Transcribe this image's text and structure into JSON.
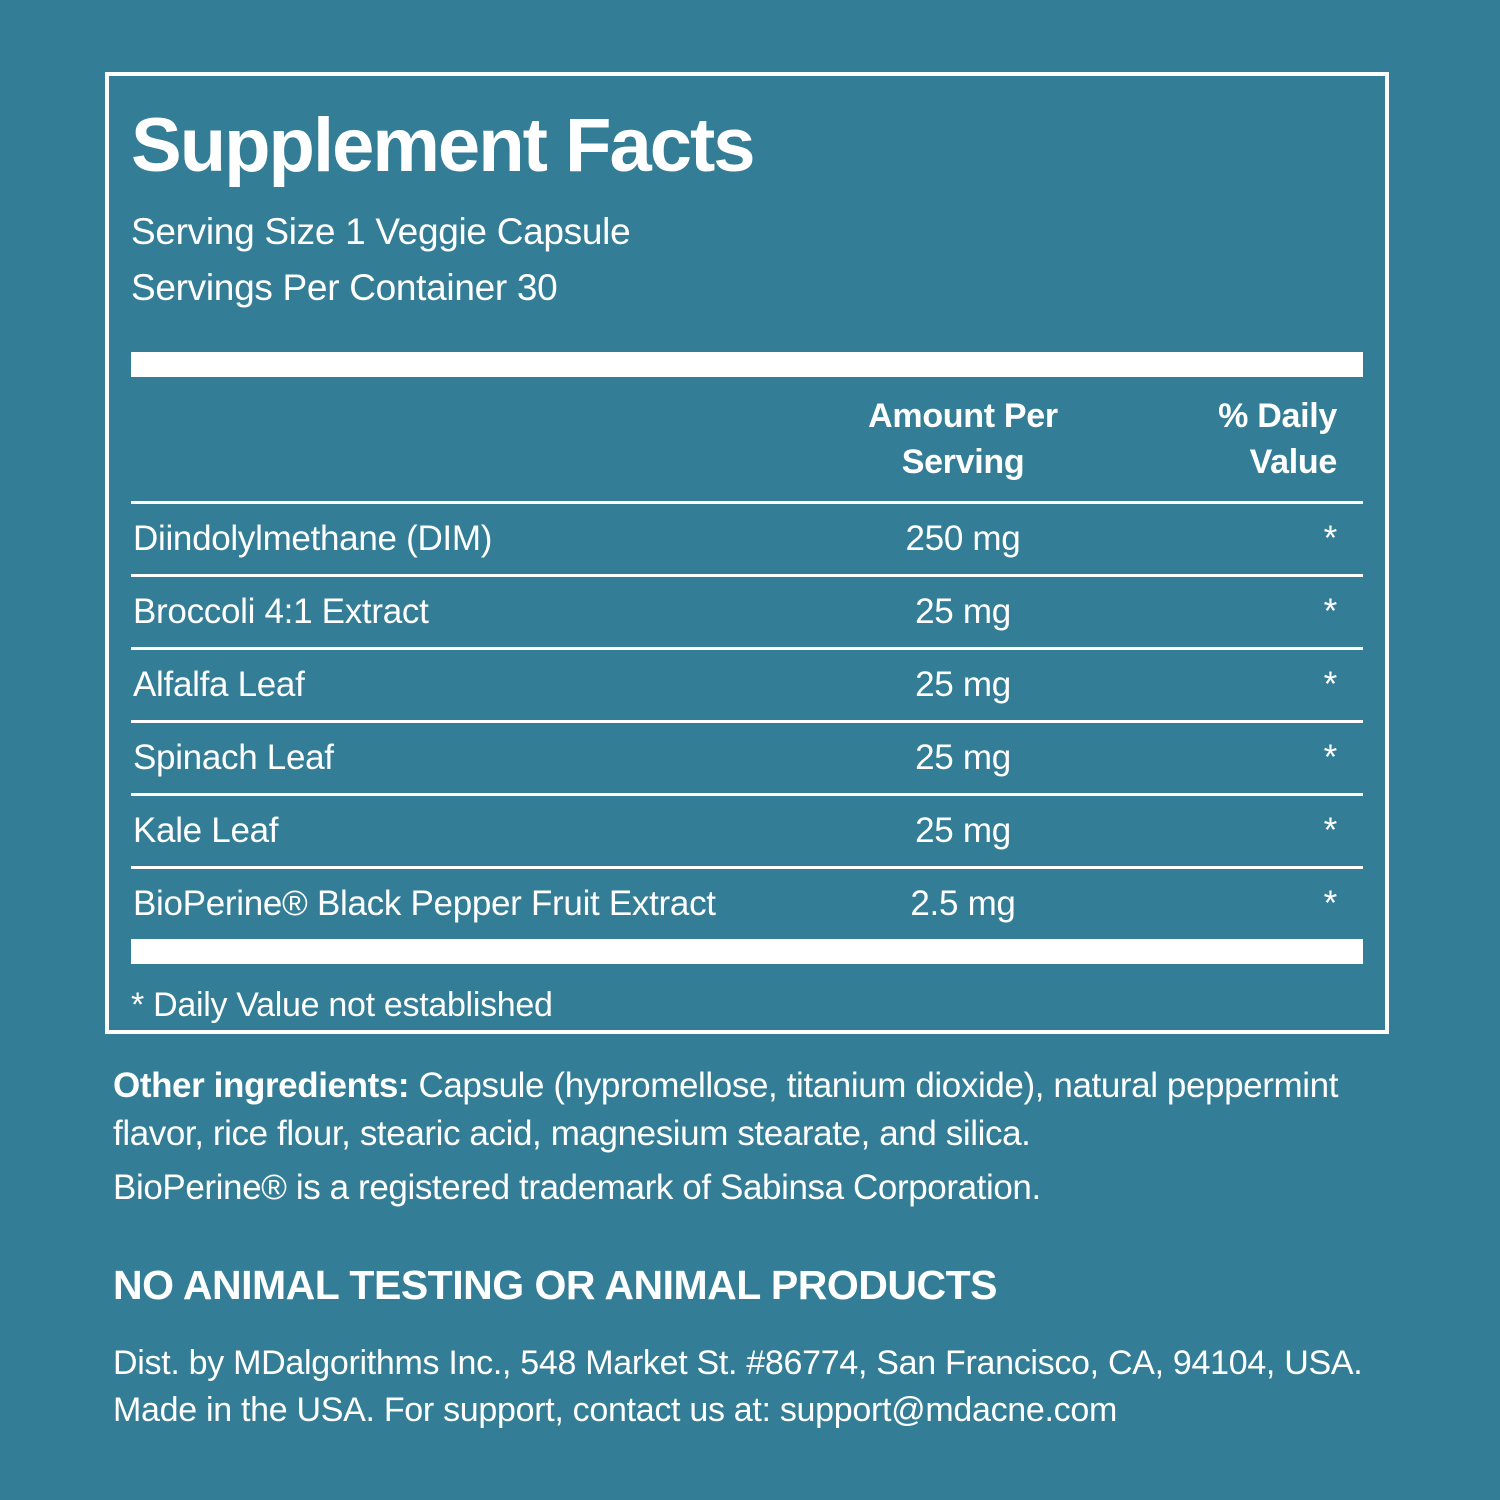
{
  "page": {
    "background_color": "#337E96",
    "text_color": "#FFFFFF"
  },
  "panel": {
    "title": "Supplement Facts",
    "serving_size": "Serving Size 1 Veggie Capsule",
    "servings_per_container": "Servings Per Container 30",
    "columns": {
      "amount_line1": "Amount Per",
      "amount_line2": "Serving",
      "dv_line1": "% Daily",
      "dv_line2": "Value"
    },
    "rows": [
      {
        "name": "Diindolylmethane (DIM)",
        "amount": "250 mg",
        "daily_value": "*"
      },
      {
        "name": "Broccoli 4:1 Extract",
        "amount": "25 mg",
        "daily_value": "*"
      },
      {
        "name": "Alfalfa Leaf",
        "amount": "25 mg",
        "daily_value": "*"
      },
      {
        "name": "Spinach Leaf",
        "amount": "25 mg",
        "daily_value": "*"
      },
      {
        "name": "Kale Leaf",
        "amount": "25 mg",
        "daily_value": "*"
      },
      {
        "name": "BioPerine® Black Pepper Fruit Extract",
        "amount": "2.5 mg",
        "daily_value": "*"
      }
    ],
    "footnote": "* Daily Value not established"
  },
  "other_ingredients": {
    "label": "Other ingredients:",
    "text_line1": " Capsule (hypromellose, titanium dioxide), natural peppermint",
    "text_line2": "flavor, rice flour, stearic acid, magnesium stearate, and silica.",
    "trademark": "BioPerine® is a registered trademark of Sabinsa Corporation."
  },
  "footer": {
    "no_animal": "NO ANIMAL TESTING OR ANIMAL PRODUCTS",
    "dist_line1": "Dist. by MDalgorithms Inc., 548 Market St. #86774, San Francisco, CA, 94104, USA.",
    "dist_line2": "Made in the USA. For support, contact us at: support@mdacne.com"
  }
}
